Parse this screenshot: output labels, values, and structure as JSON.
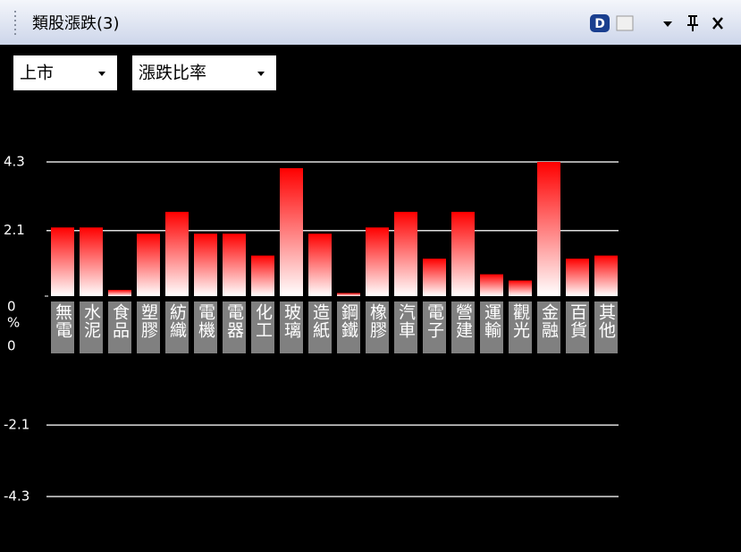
{
  "header": {
    "title": "類股漲跌(3)"
  },
  "controls": {
    "market": "上市",
    "metric": "漲跌比率"
  },
  "chart_data": {
    "type": "bar",
    "categories": [
      "無電",
      "水泥",
      "食品",
      "塑膠",
      "紡織",
      "電機",
      "電器",
      "化工",
      "玻璃",
      "造紙",
      "鋼鐵",
      "橡膠",
      "汽車",
      "電子",
      "營建",
      "運輸",
      "觀光",
      "金融",
      "百貨",
      "其他"
    ],
    "values": [
      2.2,
      2.2,
      0.2,
      2.0,
      2.7,
      2.0,
      2.0,
      1.3,
      4.1,
      2.0,
      0.1,
      2.2,
      2.7,
      1.2,
      2.7,
      0.7,
      0.5,
      4.3,
      1.2,
      1.3
    ],
    "color": "#ff0000",
    "y_unit": "%",
    "ylim": [
      -4.3,
      4.3
    ],
    "yticks": [
      4.3,
      2.1,
      0,
      -2.1,
      -4.3
    ],
    "grid": true
  }
}
